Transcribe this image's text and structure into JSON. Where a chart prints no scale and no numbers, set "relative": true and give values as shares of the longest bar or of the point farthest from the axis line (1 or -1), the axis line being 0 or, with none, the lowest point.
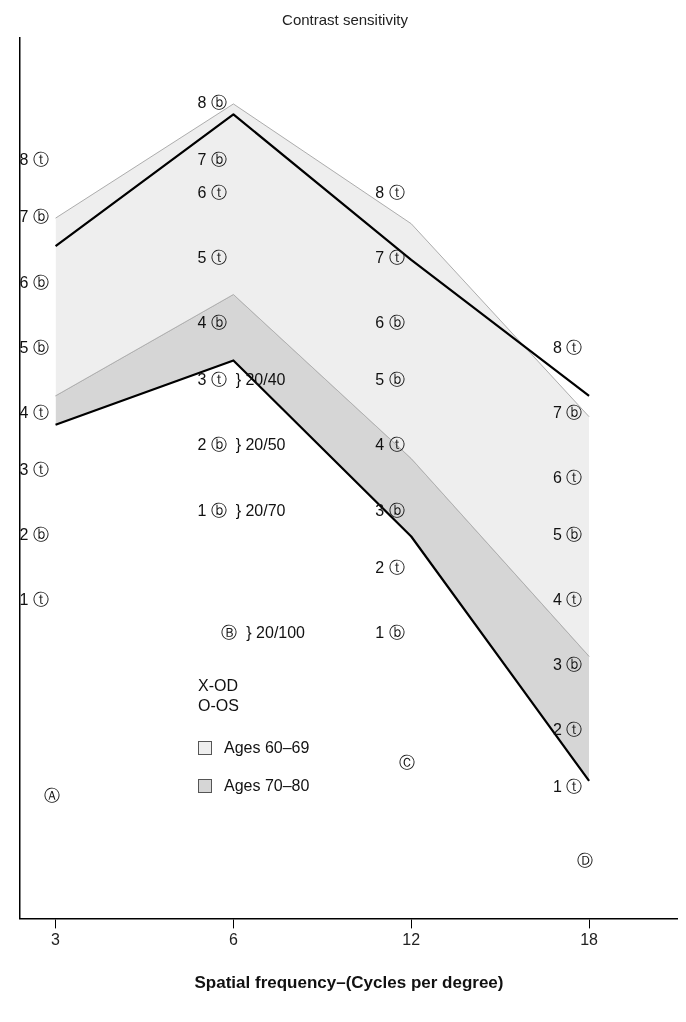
{
  "chart_data": {
    "type": "line",
    "title": "Contrast sensitivity",
    "xlabel": "Spatial frequency–(Cycles per degree)",
    "relative": true,
    "marker": "none",
    "categories": [
      "3",
      "6",
      "12",
      "18"
    ],
    "series": [
      {
        "color": "#000000",
        "values": [
          0.836,
          1,
          0.819,
          0.65
        ],
        "lower": [
          0.65,
          0.776,
          0.572,
          0.326
        ],
        "upper": [
          0.871,
          1.013,
          0.864,
          0.624
        ]
      },
      {
        "color": "#000000",
        "values": [
          0.614,
          0.694,
          0.475,
          0.171
        ],
        "lower": [
          0.614,
          0.694,
          0.475,
          0.171
        ],
        "upper": [
          0.65,
          0.776,
          0.572,
          0.326
        ]
      }
    ],
    "annotations": [
      "X-OD",
      "O-OS",
      "Ages 60–69",
      "Ages 70–80",
      "8 ⓣ",
      "7 ⓑ",
      "6 ⓑ",
      "5 ⓑ",
      "4 ⓣ",
      "3 ⓣ",
      "2 ⓑ",
      "1 ⓣ",
      "Ⓐ",
      "8 ⓑ",
      "7 ⓑ",
      "6 ⓣ",
      "5 ⓣ",
      "4 ⓑ",
      "3 ⓣ  } 20/40",
      "2 ⓑ  } 20/50",
      "1 ⓑ  } 20/70",
      "Ⓑ  } 20/100",
      "8 ⓣ",
      "7 ⓣ",
      "6 ⓑ",
      "5 ⓑ",
      "4 ⓣ",
      "3 ⓑ",
      "2 ⓣ",
      "1 ⓑ",
      "Ⓒ",
      "8 ⓣ",
      "7 ⓑ",
      "6 ⓣ",
      "5 ⓑ",
      "4 ⓣ",
      "3 ⓑ",
      "2 ⓣ",
      "1 ⓣ",
      "Ⓓ"
    ]
  }
}
